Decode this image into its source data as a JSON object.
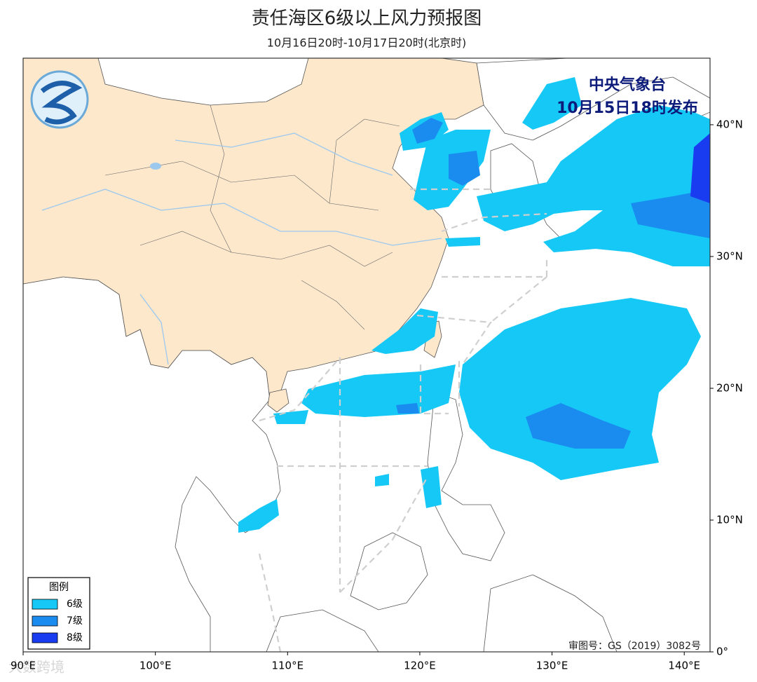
{
  "map": {
    "title": "责任海区6级以上风力预报图",
    "subtitle": "10月16日20时-10月17日20时(北京时)",
    "issuer": "中央气象台",
    "issue_time": "10月15日18时发布",
    "lonlim": [
      90,
      141.95
    ],
    "latlim": [
      0,
      45.05
    ],
    "lon_ticks": [
      {
        "value": 90,
        "label": "90°E"
      },
      {
        "value": 100,
        "label": "100°E"
      },
      {
        "value": 110,
        "label": "110°E"
      },
      {
        "value": 120,
        "label": "120°E"
      },
      {
        "value": 130,
        "label": "130°E"
      },
      {
        "value": 140,
        "label": "140°E"
      }
    ],
    "lat_ticks": [
      {
        "value": 0,
        "label": "0°"
      },
      {
        "value": 10,
        "label": "10°N"
      },
      {
        "value": 20,
        "label": "20°N"
      },
      {
        "value": 30,
        "label": "30°N"
      },
      {
        "value": 40,
        "label": "40°N"
      }
    ],
    "legend": {
      "title": "图例",
      "items": [
        {
          "label": "6级",
          "color": "#16c8f5"
        },
        {
          "label": "7级",
          "color": "#1a8cf0"
        },
        {
          "label": "8级",
          "color": "#1a3cf0"
        }
      ]
    },
    "review_number": "审图号：GS（2019）3082号",
    "watermark": "大数跨境"
  }
}
